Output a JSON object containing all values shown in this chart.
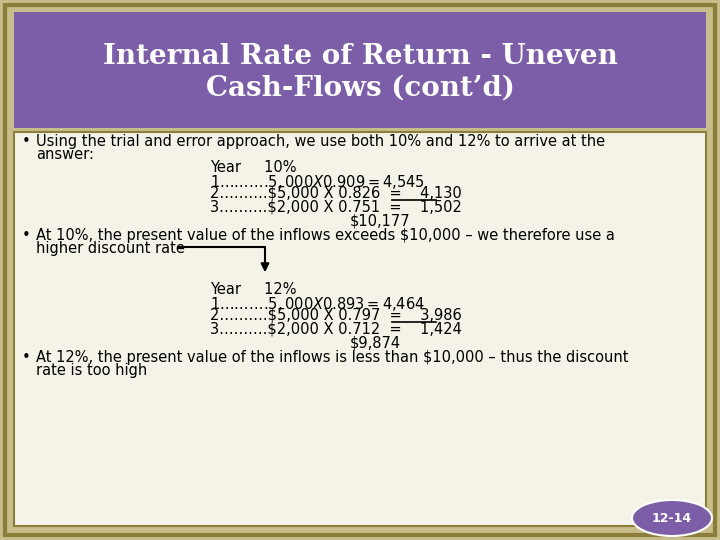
{
  "title_line1": "Internal Rate of Return - Uneven",
  "title_line2": "Cash-Flows (cont’d)",
  "title_bg": "#7B5EA7",
  "title_color": "#FFFFFF",
  "body_bg": "#C8BC8A",
  "inner_bg": "#F5F2E8",
  "border_color": "#8B7D3A",
  "inner_border": "#8B7D3A",
  "slide_number": "12-14",
  "text_color": "#000000",
  "title_fontsize": 20,
  "body_fontsize": 10.5
}
